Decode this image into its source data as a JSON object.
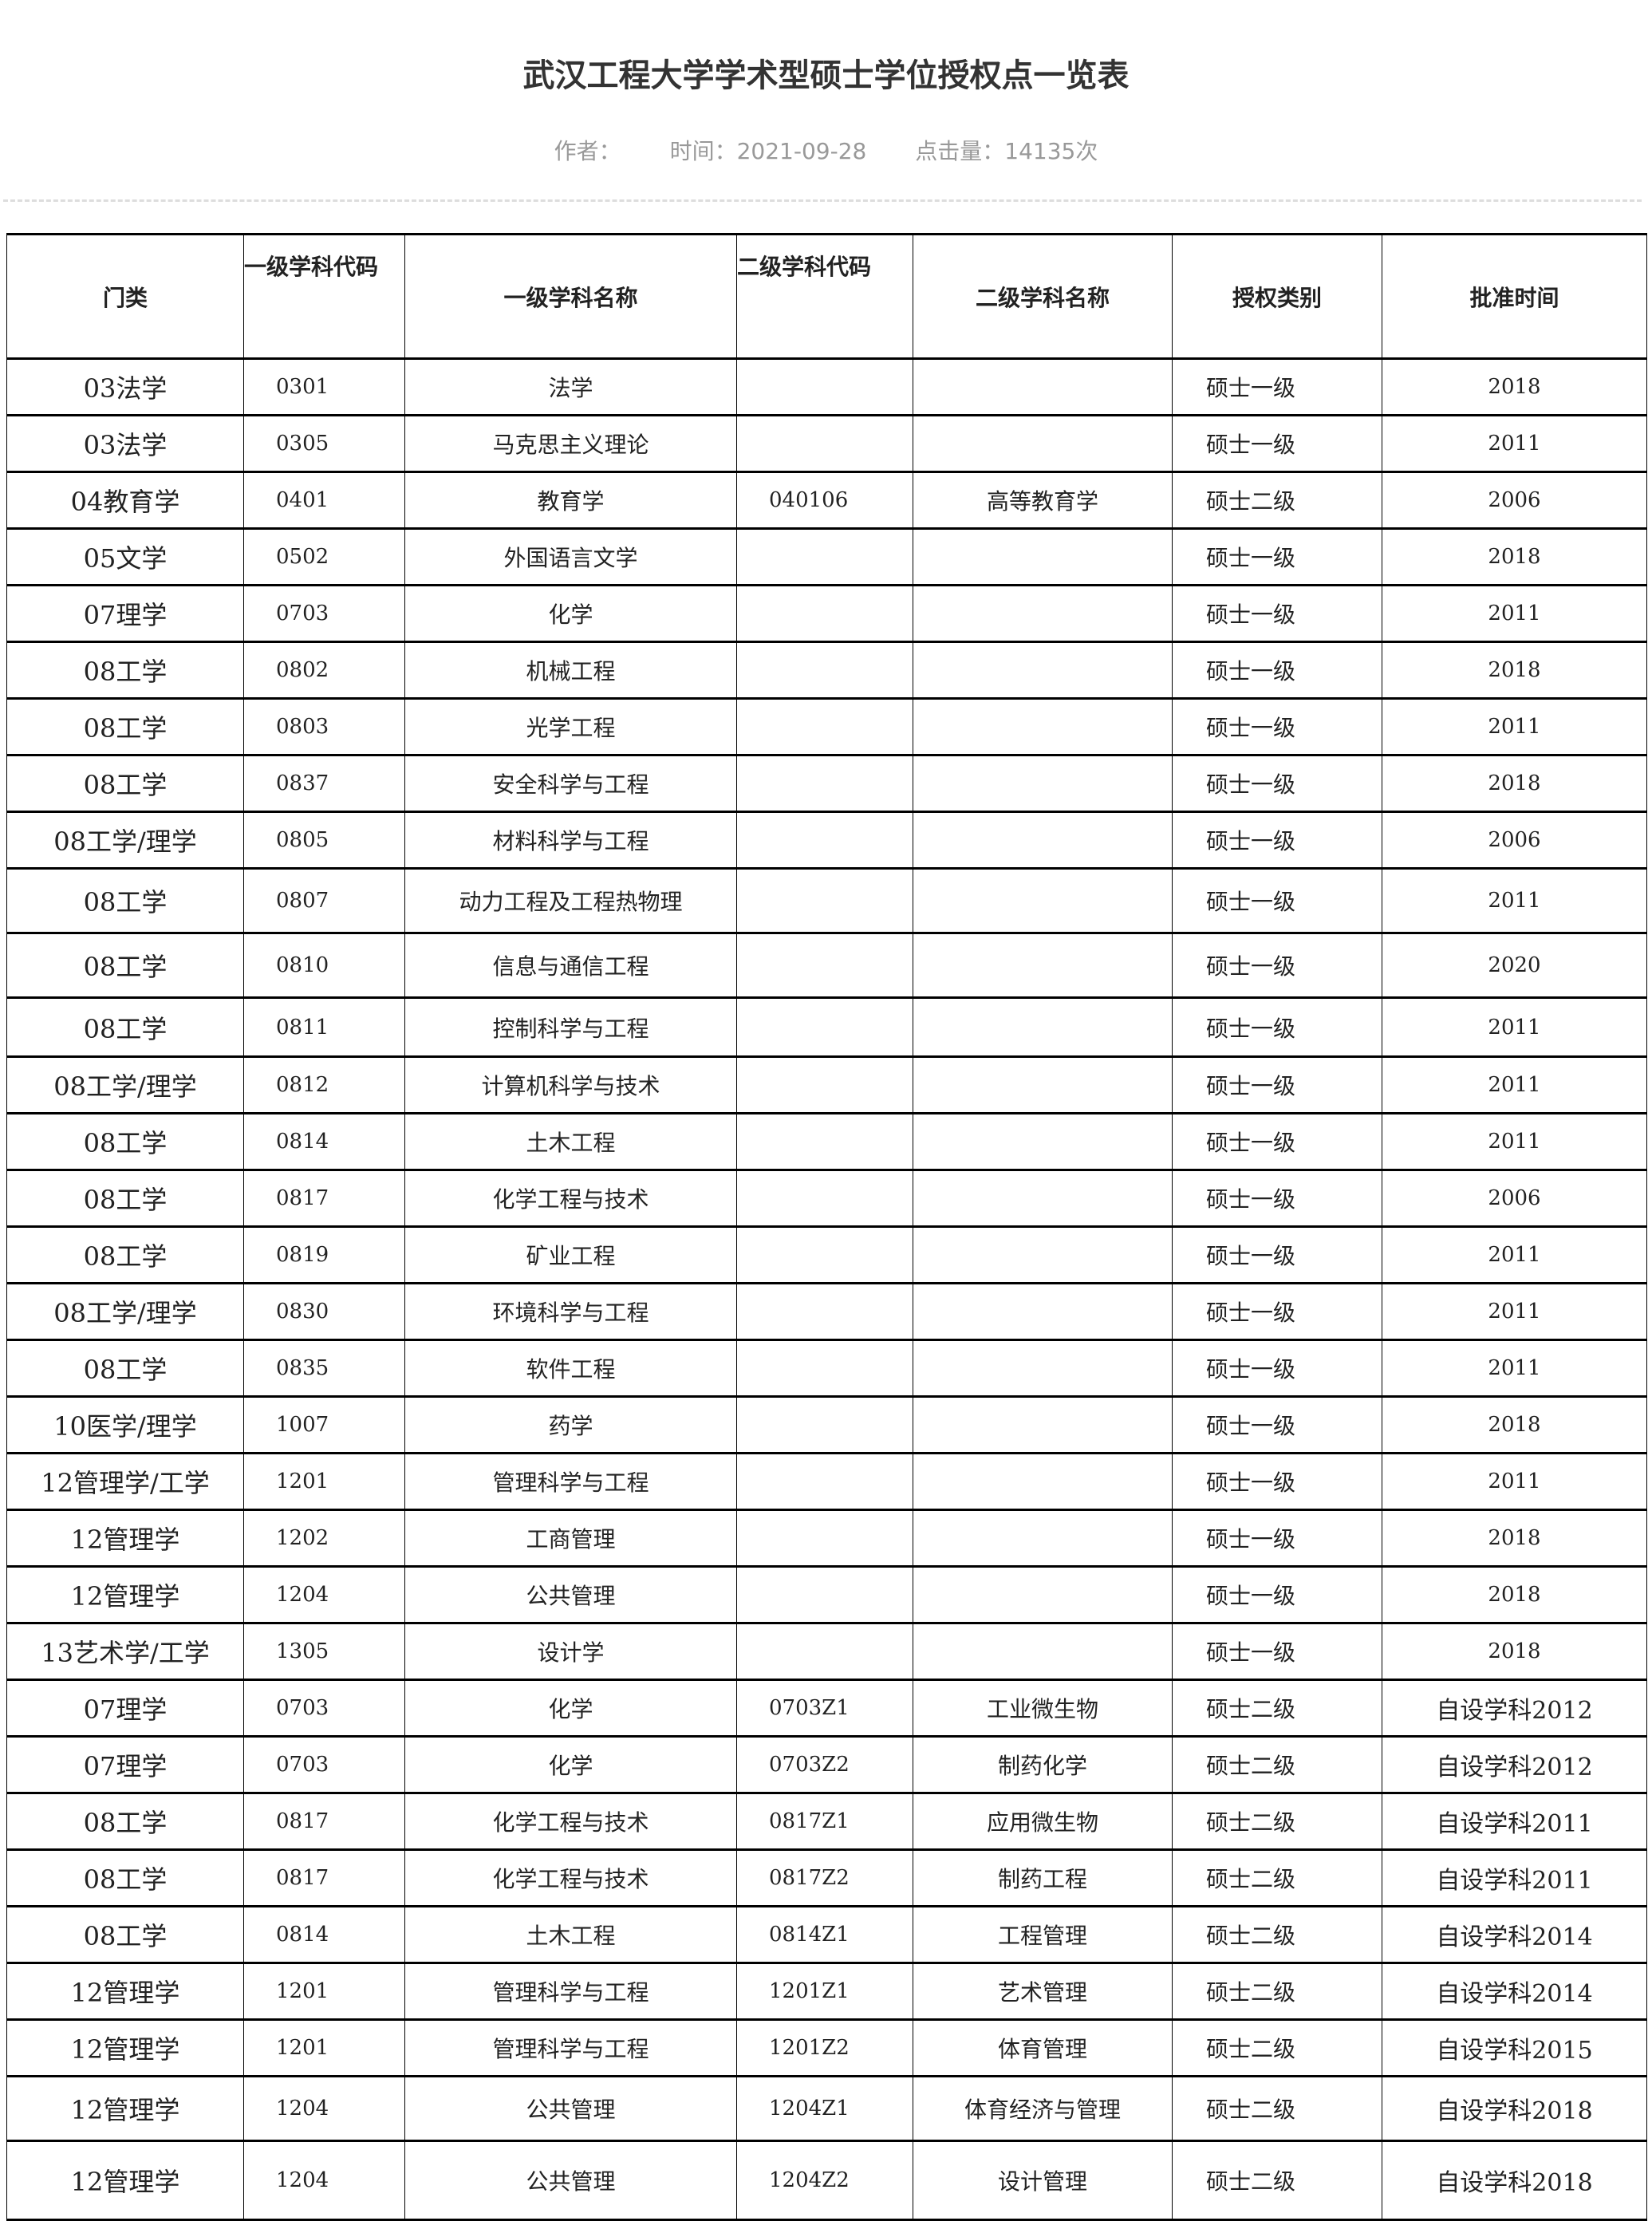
{
  "article": {
    "title": "武汉工程大学学术型硕士学位授权点一览表",
    "author_label": "作者：",
    "author": "",
    "time_label": "时间：",
    "time": "2021-09-28",
    "views_label": "点击量：",
    "views": "14135次"
  },
  "table": {
    "headers": [
      "门类",
      "一级学科代码",
      "一级学科名称",
      "二级学科代码",
      "二级学科名称",
      "授权类别",
      "批准时间"
    ],
    "rows": [
      [
        "03法学",
        "0301",
        "法学",
        "",
        "",
        "硕士一级",
        "2018"
      ],
      [
        "03法学",
        "0305",
        "马克思主义理论",
        "",
        "",
        "硕士一级",
        "2011"
      ],
      [
        "04教育学",
        "0401",
        "教育学",
        "040106",
        "高等教育学",
        "硕士二级",
        "2006"
      ],
      [
        "05文学",
        "0502",
        "外国语言文学",
        "",
        "",
        "硕士一级",
        "2018"
      ],
      [
        "07理学",
        "0703",
        "化学",
        "",
        "",
        "硕士一级",
        "2011"
      ],
      [
        "08工学",
        "0802",
        "机械工程",
        "",
        "",
        "硕士一级",
        "2018"
      ],
      [
        "08工学",
        "0803",
        "光学工程",
        "",
        "",
        "硕士一级",
        "2011"
      ],
      [
        "08工学",
        "0837",
        "安全科学与工程",
        "",
        "",
        "硕士一级",
        "2018"
      ],
      [
        "08工学/理学",
        "0805",
        "材料科学与工程",
        "",
        "",
        "硕士一级",
        "2006"
      ],
      [
        "08工学",
        "0807",
        "动力工程及工程热物理",
        "",
        "",
        "硕士一级",
        "2011"
      ],
      [
        "08工学",
        "0810",
        "信息与通信工程",
        "",
        "",
        "硕士一级",
        "2020"
      ],
      [
        "08工学",
        "0811",
        "控制科学与工程",
        "",
        "",
        "硕士一级",
        "2011"
      ],
      [
        "08工学/理学",
        "0812",
        "计算机科学与技术",
        "",
        "",
        "硕士一级",
        "2011"
      ],
      [
        "08工学",
        "0814",
        "土木工程",
        "",
        "",
        "硕士一级",
        "2011"
      ],
      [
        "08工学",
        "0817",
        "化学工程与技术",
        "",
        "",
        "硕士一级",
        "2006"
      ],
      [
        "08工学",
        "0819",
        "矿业工程",
        "",
        "",
        "硕士一级",
        "2011"
      ],
      [
        "08工学/理学",
        "0830",
        "环境科学与工程",
        "",
        "",
        "硕士一级",
        "2011"
      ],
      [
        "08工学",
        "0835",
        "软件工程",
        "",
        "",
        "硕士一级",
        "2011"
      ],
      [
        "10医学/理学",
        "1007",
        "药学",
        "",
        "",
        "硕士一级",
        "2018"
      ],
      [
        "12管理学/工学",
        "1201",
        "管理科学与工程",
        "",
        "",
        "硕士一级",
        "2011"
      ],
      [
        "12管理学",
        "1202",
        "工商管理",
        "",
        "",
        "硕士一级",
        "2018"
      ],
      [
        "12管理学",
        "1204",
        "公共管理",
        "",
        "",
        "硕士一级",
        "2018"
      ],
      [
        "13艺术学/工学",
        "1305",
        "设计学",
        "",
        "",
        "硕士一级",
        "2018"
      ],
      [
        "07理学",
        "0703",
        "化学",
        "0703Z1",
        "工业微生物",
        "硕士二级",
        "自设学科2012"
      ],
      [
        "07理学",
        "0703",
        "化学",
        "0703Z2",
        "制药化学",
        "硕士二级",
        "自设学科2012"
      ],
      [
        "08工学",
        "0817",
        "化学工程与技术",
        "0817Z1",
        "应用微生物",
        "硕士二级",
        "自设学科2011"
      ],
      [
        "08工学",
        "0817",
        "化学工程与技术",
        "0817Z2",
        "制药工程",
        "硕士二级",
        "自设学科2011"
      ],
      [
        "08工学",
        "0814",
        "土木工程",
        "0814Z1",
        "工程管理",
        "硕士二级",
        "自设学科2014"
      ],
      [
        "12管理学",
        "1201",
        "管理科学与工程",
        "1201Z1",
        "艺术管理",
        "硕士二级",
        "自设学科2014"
      ],
      [
        "12管理学",
        "1201",
        "管理科学与工程",
        "1201Z2",
        "体育管理",
        "硕士二级",
        "自设学科2015"
      ],
      [
        "12管理学",
        "1204",
        "公共管理",
        "1204Z1",
        "体育经济与管理",
        "硕士二级",
        "自设学科2018"
      ],
      [
        "12管理学",
        "1204",
        "公共管理",
        "1204Z2",
        "设计管理",
        "硕士二级",
        "自设学科2018"
      ]
    ]
  }
}
